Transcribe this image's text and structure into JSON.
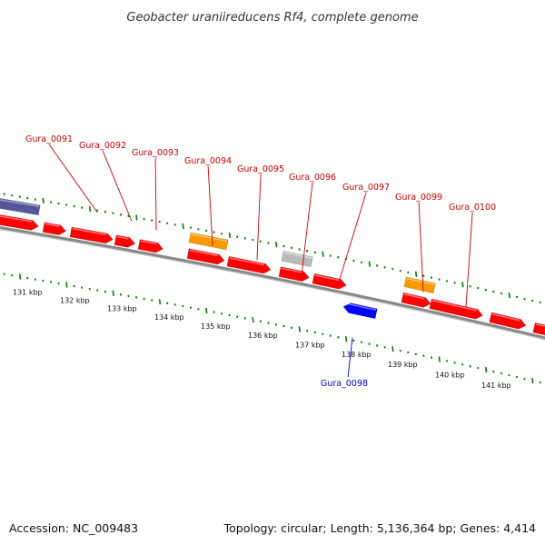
{
  "title": "Geobacter uraniireducens Rf4, complete genome",
  "accession": "Accession: NC_009483",
  "summary": "Topology: circular; Length: 5,136,364 bp; Genes: 4,414",
  "colors": {
    "cds": "#ff0000",
    "cds_reverse": "#0000ff",
    "rna": "#ff9900",
    "other": "#bbbbbb",
    "partial": "#555599",
    "backbone": "#888888",
    "ticks": "#008000",
    "label_forward": "#cc0000",
    "label_reverse": "#0000cc"
  },
  "scale_labels": [
    "131 kbp",
    "132 kbp",
    "133 kbp",
    "134 kbp",
    "135 kbp",
    "136 kbp",
    "137 kbp",
    "138 kbp",
    "139 kbp",
    "140 kbp",
    "141 kbp"
  ],
  "gene_labels": [
    {
      "name": "Gura_0091",
      "strand": "forward"
    },
    {
      "name": "Gura_0092",
      "strand": "forward"
    },
    {
      "name": "Gura_0093",
      "strand": "forward"
    },
    {
      "name": "Gura_0094",
      "strand": "forward"
    },
    {
      "name": "Gura_0095",
      "strand": "forward"
    },
    {
      "name": "Gura_0096",
      "strand": "forward"
    },
    {
      "name": "Gura_0097",
      "strand": "forward"
    },
    {
      "name": "Gura_0099",
      "strand": "forward"
    },
    {
      "name": "Gura_0100",
      "strand": "forward"
    },
    {
      "name": "Gura_0098",
      "strand": "reverse"
    }
  ]
}
